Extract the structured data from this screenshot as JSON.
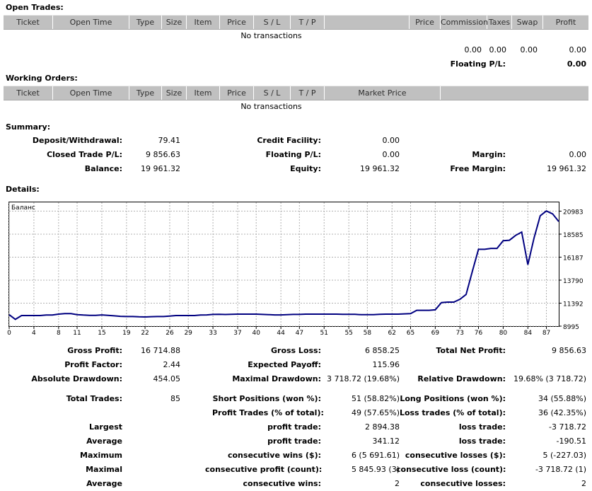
{
  "open_trades": {
    "title": "Open Trades:",
    "columns": [
      "Ticket",
      "Open Time",
      "Type",
      "Size",
      "Item",
      "Price",
      "S / L",
      "T / P",
      "",
      "Price",
      "Commission",
      "Taxes",
      "Swap",
      "Profit"
    ],
    "empty": "No transactions",
    "totals": {
      "commission": "0.00",
      "taxes": "0.00",
      "swap": "0.00",
      "profit": "0.00"
    },
    "floating_label": "Floating P/L:",
    "floating_value": "0.00"
  },
  "working_orders": {
    "title": "Working Orders:",
    "columns": [
      "Ticket",
      "Open Time",
      "Type",
      "Size",
      "Item",
      "Price",
      "S / L",
      "T / P",
      "Market Price"
    ],
    "empty": "No transactions"
  },
  "summary": {
    "title": "Summary:",
    "deposit_label": "Deposit/Withdrawal:",
    "deposit_value": "79.41",
    "credit_label": "Credit Facility:",
    "credit_value": "0.00",
    "closed_label": "Closed Trade P/L:",
    "closed_value": "9 856.63",
    "floating_label": "Floating P/L:",
    "floating_value": "0.00",
    "margin_label": "Margin:",
    "margin_value": "0.00",
    "balance_label": "Balance:",
    "balance_value": "19 961.32",
    "equity_label": "Equity:",
    "equity_value": "19 961.32",
    "free_margin_label": "Free Margin:",
    "free_margin_value": "19 961.32"
  },
  "details_title": "Details:",
  "chart_data": {
    "type": "line",
    "title": "Баланс",
    "xlabel": "",
    "ylabel": "",
    "x_ticks": [
      0,
      4,
      8,
      11,
      15,
      19,
      22,
      26,
      29,
      33,
      37,
      40,
      44,
      47,
      51,
      55,
      58,
      62,
      65,
      69,
      73,
      76,
      80,
      84,
      87
    ],
    "y_ticks": [
      8995,
      11392,
      13790,
      16187,
      18585,
      20983
    ],
    "xlim": [
      0,
      89
    ],
    "ylim": [
      8995,
      21900
    ],
    "grid": true,
    "x": [
      0,
      1,
      2,
      3,
      4,
      5,
      6,
      7,
      8,
      9,
      10,
      11,
      12,
      13,
      14,
      15,
      16,
      17,
      18,
      19,
      20,
      21,
      22,
      23,
      24,
      25,
      26,
      27,
      28,
      29,
      30,
      31,
      32,
      33,
      34,
      35,
      36,
      37,
      38,
      39,
      40,
      41,
      42,
      43,
      44,
      45,
      46,
      47,
      48,
      49,
      50,
      51,
      52,
      53,
      54,
      55,
      56,
      57,
      58,
      59,
      60,
      61,
      62,
      63,
      64,
      65,
      66,
      67,
      68,
      69,
      70,
      71,
      72,
      73,
      74,
      75,
      76,
      77,
      78,
      79,
      80,
      81,
      82,
      83,
      84,
      85,
      86,
      87,
      88,
      89
    ],
    "values": [
      10190,
      9700,
      10100,
      10100,
      10100,
      10100,
      10150,
      10150,
      10250,
      10300,
      10300,
      10200,
      10150,
      10120,
      10120,
      10170,
      10120,
      10070,
      10020,
      10000,
      10000,
      9970,
      9950,
      9980,
      10000,
      10000,
      10050,
      10100,
      10100,
      10100,
      10100,
      10150,
      10170,
      10220,
      10230,
      10210,
      10230,
      10250,
      10250,
      10250,
      10250,
      10220,
      10200,
      10170,
      10170,
      10190,
      10220,
      10220,
      10250,
      10250,
      10250,
      10250,
      10250,
      10250,
      10230,
      10230,
      10230,
      10190,
      10190,
      10200,
      10230,
      10250,
      10250,
      10250,
      10280,
      10300,
      10650,
      10650,
      10650,
      10700,
      11450,
      11500,
      11500,
      11800,
      12300,
      14700,
      17000,
      17000,
      17100,
      17100,
      17900,
      17950,
      18450,
      18800,
      15400,
      18200,
      20500,
      21000,
      20700,
      19900
    ]
  },
  "stats": {
    "gross_profit_label": "Gross Profit:",
    "gross_profit_value": "16 714.88",
    "gross_loss_label": "Gross Loss:",
    "gross_loss_value": "6 858.25",
    "total_net_label": "Total Net Profit:",
    "total_net_value": "9 856.63",
    "profit_factor_label": "Profit Factor:",
    "profit_factor_value": "2.44",
    "expected_payoff_label": "Expected Payoff:",
    "expected_payoff_value": "115.96",
    "abs_dd_label": "Absolute Drawdown:",
    "abs_dd_value": "454.05",
    "max_dd_label": "Maximal Drawdown:",
    "max_dd_value": "3 718.72 (19.68%)",
    "rel_dd_label": "Relative Drawdown:",
    "rel_dd_value": "19.68% (3 718.72)",
    "total_trades_label": "Total Trades:",
    "total_trades_value": "85",
    "short_label": "Short Positions (won %):",
    "short_value": "51 (58.82%)",
    "long_label": "Long Positions (won %):",
    "long_value": "34 (55.88%)",
    "profit_trades_label": "Profit Trades (% of total):",
    "profit_trades_value": "49 (57.65%)",
    "loss_trades_label": "Loss trades (% of total):",
    "loss_trades_value": "36 (42.35%)",
    "largest_label": "Largest",
    "largest_profit_label": "profit trade:",
    "largest_profit_value": "2 894.38",
    "largest_loss_label": "loss trade:",
    "largest_loss_value": "-3 718.72",
    "average_label": "Average",
    "average_profit_label": "profit trade:",
    "average_profit_value": "341.12",
    "average_loss_label": "loss trade:",
    "average_loss_value": "-190.51",
    "maximum_label": "Maximum",
    "max_cons_wins_label": "consecutive wins ($):",
    "max_cons_wins_value": "6 (5 691.61)",
    "max_cons_losses_label": "consecutive losses ($):",
    "max_cons_losses_value": "5 (-227.03)",
    "maximal_label": "Maximal",
    "maximal_profit_label": "consecutive profit (count):",
    "maximal_profit_value": "5 845.93 (3)",
    "maximal_loss_label": "consecutive loss (count):",
    "maximal_loss_value": "-3 718.72 (1)",
    "average2_label": "Average",
    "avg_cons_wins_label": "consecutive wins:",
    "avg_cons_wins_value": "2",
    "avg_cons_losses_label": "consecutive losses:",
    "avg_cons_losses_value": "2"
  }
}
